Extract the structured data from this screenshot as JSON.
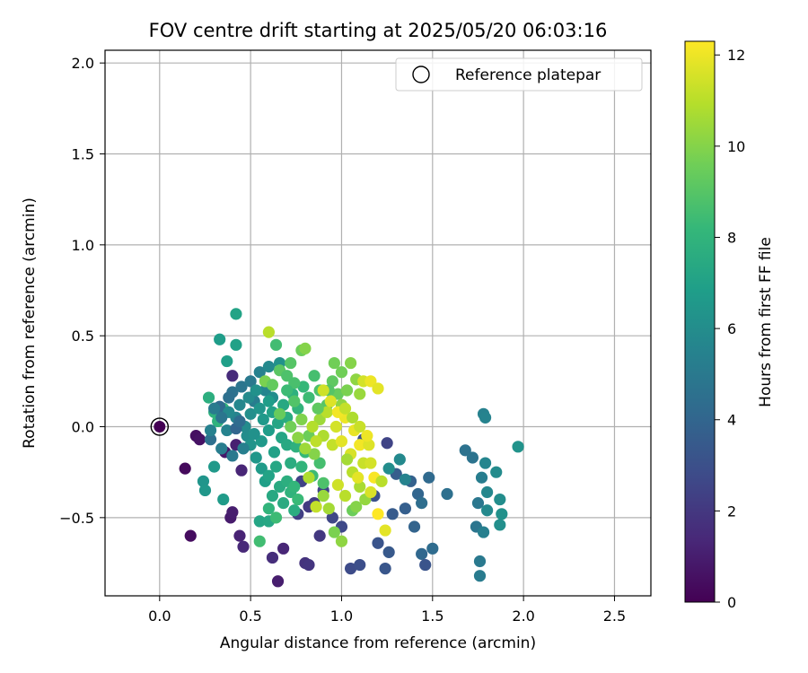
{
  "chart_data": {
    "type": "scatter",
    "title": "FOV centre drift starting at 2025/05/20 06:03:16",
    "xlabel": "Angular distance from reference (arcmin)",
    "ylabel": "Rotation from reference (arcmin)",
    "xlim": [
      -0.3,
      2.7
    ],
    "ylim": [
      -0.93,
      2.07
    ],
    "xticks": [
      0.0,
      0.5,
      1.0,
      1.5,
      2.0,
      2.5
    ],
    "xtick_labels": [
      "0.0",
      "0.5",
      "1.0",
      "1.5",
      "2.0",
      "2.5"
    ],
    "yticks": [
      -0.5,
      0.0,
      0.5,
      1.0,
      1.5,
      2.0
    ],
    "ytick_labels": [
      "−0.5",
      "0.0",
      "0.5",
      "1.0",
      "1.5",
      "2.0"
    ],
    "grid": true,
    "legend": {
      "placement": "top-right",
      "entries": [
        "Reference platepar"
      ]
    },
    "reference_point": {
      "x": 0.0,
      "y": 0.0,
      "label": "Reference platepar"
    },
    "colorbar": {
      "label": "Hours from first FF file",
      "colormap": "viridis",
      "range": [
        0,
        12.3
      ],
      "ticks": [
        0,
        2,
        4,
        6,
        8,
        10,
        12
      ],
      "tick_labels": [
        "0",
        "2",
        "4",
        "6",
        "8",
        "10",
        "12"
      ],
      "colors": [
        "#440154",
        "#482878",
        "#3e4a89",
        "#31688e",
        "#26828e",
        "#1f9e89",
        "#35b779",
        "#6ece58",
        "#b5de2b",
        "#fde725"
      ]
    },
    "series": [
      {
        "points": [
          [
            0.14,
            -0.23,
            0.3
          ],
          [
            0.17,
            -0.6,
            0.4
          ],
          [
            0.2,
            -0.05,
            0.5
          ],
          [
            0.22,
            -0.07,
            0.6
          ],
          [
            0.36,
            -0.14,
            0.8
          ],
          [
            0.39,
            -0.5,
            0.9
          ],
          [
            0.4,
            -0.47,
            1.0
          ],
          [
            0.42,
            -0.1,
            1.1
          ],
          [
            0.44,
            -0.6,
            1.2
          ],
          [
            0.45,
            -0.24,
            1.3
          ],
          [
            0.46,
            -0.66,
            1.4
          ],
          [
            0.4,
            0.28,
            1.5
          ],
          [
            0.62,
            -0.72,
            1.6
          ],
          [
            0.65,
            -0.85,
            1.0
          ],
          [
            0.68,
            -0.67,
            1.3
          ],
          [
            0.8,
            -0.75,
            1.8
          ],
          [
            0.82,
            -0.76,
            1.9
          ],
          [
            0.88,
            -0.6,
            2.0
          ],
          [
            0.82,
            -0.44,
            2.1
          ],
          [
            0.85,
            -0.42,
            2.2
          ],
          [
            0.76,
            -0.48,
            2.3
          ],
          [
            0.78,
            -0.3,
            2.4
          ],
          [
            0.9,
            -0.35,
            2.5
          ],
          [
            0.95,
            -0.5,
            2.6
          ],
          [
            1.0,
            -0.55,
            2.7
          ],
          [
            1.05,
            -0.78,
            2.8
          ],
          [
            1.1,
            -0.76,
            2.9
          ],
          [
            1.12,
            -0.07,
            3.0
          ],
          [
            1.18,
            -0.38,
            3.1
          ],
          [
            1.2,
            -0.64,
            3.2
          ],
          [
            1.24,
            -0.78,
            3.3
          ],
          [
            1.26,
            -0.69,
            3.4
          ],
          [
            1.28,
            -0.48,
            3.5
          ],
          [
            1.3,
            -0.26,
            3.6
          ],
          [
            1.25,
            -0.09,
            2.5
          ],
          [
            1.35,
            -0.45,
            3.7
          ],
          [
            1.38,
            -0.3,
            3.8
          ],
          [
            1.4,
            -0.55,
            3.9
          ],
          [
            1.42,
            -0.37,
            4.0
          ],
          [
            1.44,
            -0.7,
            4.1
          ],
          [
            1.46,
            -0.76,
            3.2
          ],
          [
            1.48,
            -0.28,
            4.2
          ],
          [
            1.5,
            -0.67,
            4.3
          ],
          [
            1.44,
            -0.42,
            4.4
          ],
          [
            1.58,
            -0.37,
            4.5
          ],
          [
            1.68,
            -0.13,
            4.6
          ],
          [
            1.72,
            -0.17,
            4.7
          ],
          [
            1.74,
            -0.55,
            4.8
          ],
          [
            1.75,
            -0.42,
            4.9
          ],
          [
            1.76,
            -0.74,
            5.0
          ],
          [
            1.76,
            -0.82,
            5.1
          ],
          [
            1.77,
            -0.28,
            5.2
          ],
          [
            1.78,
            -0.58,
            5.3
          ],
          [
            1.78,
            0.07,
            5.4
          ],
          [
            1.79,
            0.05,
            5.5
          ],
          [
            1.79,
            -0.2,
            5.6
          ],
          [
            1.8,
            -0.36,
            5.7
          ],
          [
            1.8,
            -0.46,
            5.8
          ],
          [
            1.85,
            -0.25,
            5.9
          ],
          [
            1.87,
            -0.4,
            6.0
          ],
          [
            1.87,
            -0.54,
            6.1
          ],
          [
            1.88,
            -0.48,
            6.2
          ],
          [
            1.97,
            -0.11,
            6.3
          ],
          [
            1.35,
            -0.29,
            5.5
          ],
          [
            1.32,
            -0.18,
            5.8
          ],
          [
            1.26,
            -0.23,
            6.0
          ],
          [
            0.24,
            -0.3,
            6.4
          ],
          [
            0.25,
            -0.35,
            6.5
          ],
          [
            0.3,
            -0.22,
            6.6
          ],
          [
            0.35,
            -0.4,
            6.7
          ],
          [
            0.33,
            0.48,
            6.8
          ],
          [
            0.37,
            0.36,
            6.9
          ],
          [
            0.42,
            0.45,
            7.0
          ],
          [
            0.42,
            0.62,
            7.1
          ],
          [
            0.55,
            -0.52,
            7.2
          ],
          [
            0.6,
            -0.52,
            7.3
          ],
          [
            0.55,
            -0.63,
            8.5
          ],
          [
            0.62,
            -0.38,
            7.4
          ],
          [
            0.68,
            -0.42,
            7.5
          ],
          [
            0.74,
            -0.46,
            7.6
          ],
          [
            0.27,
            0.16,
            7.7
          ],
          [
            0.3,
            0.08,
            7.8
          ],
          [
            0.32,
            0.03,
            7.9
          ],
          [
            0.35,
            0.1,
            8.0
          ],
          [
            0.28,
            -0.07,
            4.5
          ],
          [
            0.33,
            0.11,
            4.2
          ],
          [
            0.4,
            0.19,
            4.6
          ],
          [
            0.45,
            0.22,
            4.8
          ],
          [
            0.5,
            0.25,
            5.0
          ],
          [
            0.52,
            0.14,
            5.2
          ],
          [
            0.55,
            0.3,
            5.4
          ],
          [
            0.58,
            0.2,
            5.6
          ],
          [
            0.6,
            0.33,
            5.8
          ],
          [
            0.62,
            0.16,
            6.0
          ],
          [
            0.66,
            0.35,
            6.2
          ],
          [
            0.48,
            -0.05,
            6.0
          ],
          [
            0.5,
            -0.1,
            6.3
          ],
          [
            0.53,
            -0.17,
            6.5
          ],
          [
            0.56,
            -0.08,
            6.6
          ],
          [
            0.6,
            -0.02,
            6.8
          ],
          [
            0.63,
            -0.14,
            7.0
          ],
          [
            0.67,
            -0.06,
            7.2
          ],
          [
            0.7,
            -0.1,
            7.4
          ],
          [
            0.72,
            -0.2,
            7.6
          ],
          [
            0.75,
            -0.11,
            7.8
          ],
          [
            0.78,
            -0.22,
            8.0
          ],
          [
            0.8,
            -0.14,
            8.2
          ],
          [
            0.84,
            -0.27,
            8.4
          ],
          [
            0.88,
            -0.2,
            8.6
          ],
          [
            0.9,
            -0.31,
            8.8
          ],
          [
            0.42,
            0.05,
            5.5
          ],
          [
            0.44,
            0.12,
            5.7
          ],
          [
            0.47,
            0.0,
            5.9
          ],
          [
            0.5,
            0.07,
            6.1
          ],
          [
            0.52,
            -0.04,
            6.2
          ],
          [
            0.55,
            0.1,
            6.4
          ],
          [
            0.57,
            0.04,
            6.6
          ],
          [
            0.6,
            0.14,
            6.8
          ],
          [
            0.62,
            0.08,
            7.0
          ],
          [
            0.65,
            0.02,
            7.2
          ],
          [
            0.68,
            0.12,
            7.4
          ],
          [
            0.7,
            0.05,
            7.6
          ],
          [
            0.73,
            0.18,
            7.8
          ],
          [
            0.76,
            0.1,
            8.0
          ],
          [
            0.79,
            0.22,
            8.2
          ],
          [
            0.82,
            0.16,
            8.4
          ],
          [
            0.85,
            0.28,
            8.6
          ],
          [
            0.88,
            0.2,
            8.8
          ],
          [
            0.92,
            0.12,
            9.0
          ],
          [
            0.95,
            0.25,
            9.2
          ],
          [
            0.98,
            0.18,
            9.4
          ],
          [
            1.0,
            0.3,
            9.6
          ],
          [
            1.03,
            0.2,
            9.8
          ],
          [
            1.05,
            0.35,
            10.0
          ],
          [
            1.08,
            0.26,
            10.2
          ],
          [
            1.1,
            0.18,
            10.4
          ],
          [
            0.78,
            0.42,
            9.5
          ],
          [
            0.8,
            0.43,
            10.0
          ],
          [
            0.6,
            0.52,
            11.0
          ],
          [
            0.64,
            0.45,
            8.5
          ],
          [
            0.72,
            0.35,
            9.0
          ],
          [
            0.96,
            0.35,
            9.6
          ],
          [
            1.12,
            0.25,
            11.5
          ],
          [
            1.16,
            0.25,
            12.0
          ],
          [
            1.2,
            0.21,
            11.8
          ],
          [
            0.88,
            0.04,
            10.5
          ],
          [
            0.9,
            -0.05,
            10.8
          ],
          [
            0.92,
            0.08,
            11.0
          ],
          [
            0.95,
            -0.1,
            11.2
          ],
          [
            0.97,
            0.0,
            11.5
          ],
          [
            1.0,
            -0.08,
            11.8
          ],
          [
            1.02,
            0.05,
            12.0
          ],
          [
            1.05,
            -0.15,
            11.6
          ],
          [
            1.07,
            -0.02,
            11.9
          ],
          [
            1.1,
            -0.1,
            12.1
          ],
          [
            1.12,
            -0.2,
            11.3
          ],
          [
            1.15,
            -0.1,
            11.7
          ],
          [
            1.18,
            -0.28,
            12.2
          ],
          [
            1.22,
            -0.3,
            11.0
          ],
          [
            1.24,
            -0.57,
            11.8
          ],
          [
            1.2,
            -0.48,
            12.3
          ],
          [
            1.06,
            -0.46,
            9.5
          ],
          [
            1.08,
            -0.44,
            10.0
          ],
          [
            1.02,
            -0.38,
            11.0
          ],
          [
            0.98,
            -0.32,
            11.4
          ],
          [
            1.0,
            -0.63,
            10.2
          ],
          [
            0.96,
            -0.58,
            9.8
          ],
          [
            0.93,
            -0.45,
            10.6
          ],
          [
            0.9,
            -0.38,
            10.4
          ],
          [
            0.86,
            -0.44,
            11.2
          ],
          [
            0.82,
            -0.28,
            10.8
          ],
          [
            0.85,
            -0.15,
            10.0
          ],
          [
            0.82,
            -0.05,
            9.5
          ],
          [
            0.87,
            0.1,
            9.2
          ],
          [
            0.93,
            0.2,
            9.0
          ],
          [
            1.0,
            0.12,
            10.2
          ],
          [
            1.03,
            -0.18,
            10.6
          ],
          [
            1.06,
            -0.25,
            11.0
          ],
          [
            1.1,
            -0.33,
            10.7
          ],
          [
            1.13,
            -0.4,
            10.3
          ],
          [
            1.16,
            -0.36,
            11.6
          ],
          [
            0.58,
            0.25,
            9.8
          ],
          [
            0.62,
            0.23,
            9.3
          ],
          [
            0.66,
            0.31,
            9.1
          ],
          [
            0.7,
            0.28,
            8.8
          ],
          [
            0.74,
            0.24,
            8.7
          ],
          [
            0.7,
            0.2,
            8.4
          ],
          [
            0.74,
            0.14,
            8.9
          ],
          [
            0.66,
            0.07,
            9.4
          ],
          [
            0.72,
            0.0,
            9.6
          ],
          [
            0.78,
            0.04,
            9.9
          ],
          [
            0.76,
            -0.06,
            10.1
          ],
          [
            0.8,
            -0.12,
            10.5
          ],
          [
            0.84,
            0.0,
            10.9
          ],
          [
            0.86,
            -0.08,
            11.1
          ],
          [
            0.9,
            0.2,
            11.4
          ],
          [
            0.94,
            0.14,
            11.7
          ],
          [
            0.98,
            0.08,
            12.1
          ],
          [
            1.02,
            0.1,
            11.2
          ],
          [
            1.06,
            0.05,
            10.8
          ],
          [
            1.1,
            0.0,
            11.3
          ],
          [
            1.14,
            -0.05,
            12.0
          ],
          [
            1.16,
            -0.2,
            11.5
          ],
          [
            1.09,
            -0.28,
            11.8
          ],
          [
            0.34,
            -0.12,
            5.2
          ],
          [
            0.37,
            -0.02,
            5.5
          ],
          [
            0.38,
            0.08,
            5.8
          ],
          [
            0.4,
            -0.16,
            5.0
          ],
          [
            0.46,
            -0.12,
            5.3
          ],
          [
            0.49,
            0.16,
            5.9
          ],
          [
            0.53,
            0.2,
            6.2
          ],
          [
            0.56,
            -0.23,
            6.7
          ],
          [
            0.58,
            -0.3,
            6.9
          ],
          [
            0.6,
            -0.27,
            7.1
          ],
          [
            0.64,
            -0.22,
            7.3
          ],
          [
            0.66,
            -0.33,
            7.5
          ],
          [
            0.7,
            -0.3,
            7.7
          ],
          [
            0.72,
            -0.36,
            7.9
          ],
          [
            0.74,
            -0.33,
            8.1
          ],
          [
            0.76,
            -0.4,
            8.3
          ],
          [
            0.6,
            -0.45,
            8.0
          ],
          [
            0.64,
            -0.5,
            8.4
          ],
          [
            0.42,
            -0.01,
            4.0
          ],
          [
            0.44,
            0.03,
            4.3
          ],
          [
            0.38,
            0.16,
            4.5
          ],
          [
            0.34,
            0.05,
            4.8
          ],
          [
            0.3,
            0.1,
            5.1
          ],
          [
            0.28,
            -0.02,
            5.4
          ]
        ]
      }
    ]
  }
}
